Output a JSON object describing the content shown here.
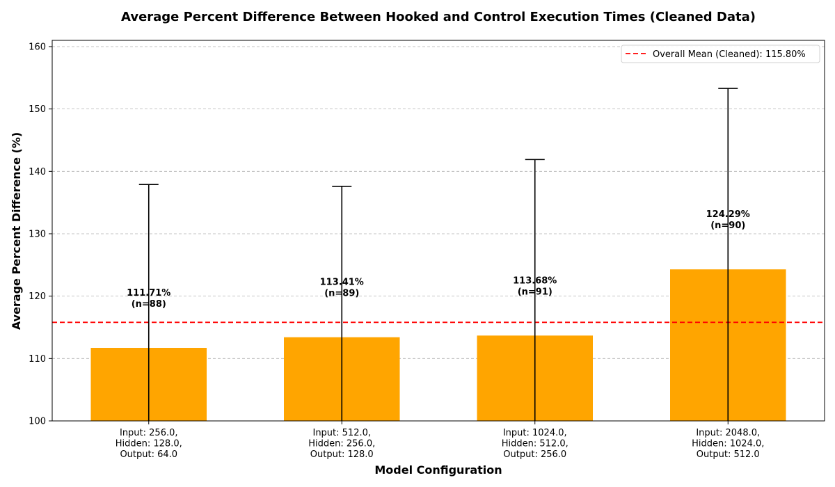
{
  "chart_data": {
    "type": "bar",
    "title": "Average Percent Difference Between Hooked and Control Execution Times (Cleaned Data)",
    "xlabel": "Model Configuration",
    "ylabel": "Average Percent Difference (%)",
    "ylim": [
      100,
      161
    ],
    "yticks": [
      100,
      110,
      120,
      130,
      140,
      150,
      160
    ],
    "grid": "y-dashed",
    "legend_position": "top-right",
    "categories": [
      [
        "Input: 256.0,",
        "Hidden: 128.0,",
        "Output: 64.0"
      ],
      [
        "Input: 512.0,",
        "Hidden: 256.0,",
        "Output: 128.0"
      ],
      [
        "Input: 1024.0,",
        "Hidden: 512.0,",
        "Output: 256.0"
      ],
      [
        "Input: 2048.0,",
        "Hidden: 1024.0,",
        "Output: 512.0"
      ]
    ],
    "values": [
      111.71,
      113.41,
      113.68,
      124.29
    ],
    "error_upper": [
      137.9,
      137.6,
      141.9,
      153.3
    ],
    "data_labels": [
      [
        "111.71%",
        "(n=88)"
      ],
      [
        "113.41%",
        "(n=89)"
      ],
      [
        "113.68%",
        "(n=91)"
      ],
      [
        "124.29%",
        "(n=90)"
      ]
    ],
    "mean_line": {
      "value": 115.8,
      "label": "Overall Mean (Cleaned): 115.80%",
      "color": "#ff0000"
    },
    "bar_color": "#ffa500",
    "error_color": "#000000"
  }
}
